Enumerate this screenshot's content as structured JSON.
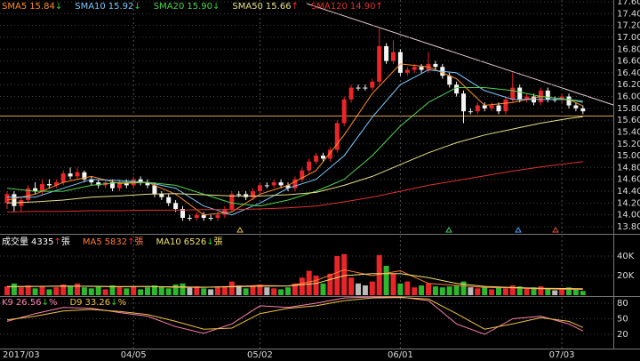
{
  "chart_data": [
    {
      "type": "candlestick",
      "categories": [
        null,
        null,
        "2017/03",
        null,
        null,
        null,
        null,
        null,
        null,
        null,
        null,
        null,
        null,
        null,
        null,
        null,
        null,
        null,
        "04/05",
        null,
        null,
        null,
        null,
        null,
        null,
        null,
        null,
        null,
        null,
        null,
        null,
        null,
        null,
        null,
        null,
        null,
        "05/02",
        null,
        null,
        null,
        null,
        null,
        null,
        null,
        null,
        null,
        null,
        null,
        null,
        null,
        null,
        null,
        null,
        null,
        null,
        null,
        "06/01",
        null,
        null,
        null,
        null,
        null,
        null,
        null,
        null,
        null,
        null,
        null,
        null,
        null,
        null,
        null,
        null,
        null,
        null,
        null,
        null,
        null,
        null,
        "07/03",
        null,
        null,
        null
      ],
      "open": [
        14.2,
        14.35,
        14.15,
        14.25,
        14.45,
        14.4,
        14.52,
        14.5,
        14.55,
        14.7,
        14.65,
        14.72,
        14.6,
        14.55,
        14.5,
        14.55,
        14.45,
        14.55,
        14.5,
        14.6,
        14.55,
        14.5,
        14.35,
        14.3,
        14.2,
        14.1,
        13.95,
        13.95,
        14.0,
        13.95,
        13.95,
        14.0,
        14.1,
        14.35,
        14.35,
        14.3,
        14.4,
        14.5,
        14.5,
        14.55,
        14.5,
        14.45,
        14.6,
        14.75,
        14.9,
        15.0,
        14.95,
        15.1,
        15.55,
        15.95,
        16.15,
        16.15,
        16.15,
        16.25,
        16.85,
        16.6,
        16.75,
        16.4,
        16.45,
        16.5,
        16.45,
        16.55,
        16.5,
        16.35,
        16.2,
        16.05,
        15.75,
        15.75,
        15.85,
        15.8,
        15.85,
        15.75,
        15.95,
        16.15,
        15.95,
        16.0,
        15.9,
        16.1,
        15.95,
        15.95,
        16.0,
        15.85,
        15.8
      ],
      "high": [
        14.4,
        14.4,
        14.3,
        14.5,
        14.55,
        14.6,
        14.6,
        14.6,
        14.75,
        14.8,
        14.8,
        14.75,
        14.65,
        14.6,
        14.6,
        14.6,
        14.6,
        14.6,
        14.65,
        14.65,
        14.6,
        14.55,
        14.4,
        14.35,
        14.25,
        14.15,
        14.0,
        14.05,
        14.05,
        14.0,
        14.05,
        14.15,
        14.4,
        14.4,
        14.4,
        14.45,
        14.55,
        14.55,
        14.6,
        14.6,
        14.55,
        14.65,
        14.8,
        14.95,
        15.05,
        15.05,
        15.15,
        15.6,
        16.0,
        16.2,
        16.2,
        16.2,
        16.3,
        17.15,
        16.9,
        16.95,
        16.8,
        16.5,
        16.55,
        16.55,
        16.75,
        16.6,
        16.55,
        16.4,
        16.25,
        16.1,
        15.8,
        15.9,
        15.9,
        15.9,
        15.9,
        16.0,
        16.4,
        16.2,
        16.05,
        16.05,
        16.15,
        16.15,
        16.0,
        16.05,
        16.05,
        15.9,
        15.85
      ],
      "low": [
        14.1,
        14.05,
        14.05,
        14.2,
        14.35,
        14.35,
        14.45,
        14.45,
        14.5,
        14.6,
        14.6,
        14.55,
        14.5,
        14.45,
        14.45,
        14.4,
        14.4,
        14.45,
        14.45,
        14.5,
        14.45,
        14.3,
        14.25,
        14.15,
        14.05,
        13.9,
        13.9,
        13.9,
        13.9,
        13.9,
        13.9,
        13.95,
        14.05,
        14.3,
        14.25,
        14.25,
        14.35,
        14.45,
        14.45,
        14.45,
        14.4,
        14.4,
        14.55,
        14.7,
        14.85,
        14.9,
        14.9,
        15.05,
        15.5,
        15.9,
        16.1,
        16.1,
        16.1,
        16.2,
        16.55,
        16.55,
        16.35,
        16.35,
        16.4,
        16.4,
        16.4,
        16.45,
        16.3,
        16.15,
        16.0,
        15.55,
        15.7,
        15.7,
        15.75,
        15.75,
        15.7,
        15.7,
        15.9,
        15.9,
        15.9,
        15.85,
        15.85,
        15.9,
        15.9,
        15.9,
        15.8,
        15.75,
        15.7
      ],
      "close": [
        14.35,
        14.15,
        14.25,
        14.45,
        14.4,
        14.52,
        14.5,
        14.55,
        14.7,
        14.65,
        14.72,
        14.6,
        14.55,
        14.5,
        14.55,
        14.45,
        14.55,
        14.5,
        14.6,
        14.55,
        14.5,
        14.35,
        14.3,
        14.2,
        14.1,
        13.95,
        13.95,
        14.0,
        13.95,
        13.95,
        14.0,
        14.1,
        14.35,
        14.35,
        14.3,
        14.4,
        14.5,
        14.5,
        14.55,
        14.5,
        14.45,
        14.6,
        14.75,
        14.9,
        15.0,
        14.95,
        15.1,
        15.55,
        15.95,
        16.15,
        16.15,
        16.15,
        16.25,
        16.85,
        16.6,
        16.75,
        16.4,
        16.45,
        16.5,
        16.45,
        16.55,
        16.5,
        16.35,
        16.2,
        16.05,
        15.75,
        15.75,
        15.85,
        15.8,
        15.85,
        15.75,
        15.95,
        16.15,
        15.95,
        16.0,
        15.9,
        16.1,
        15.95,
        15.95,
        16.0,
        15.85,
        15.8,
        15.75
      ],
      "up_color": "#e8262a",
      "down_color": "#f4f4f4",
      "ylim": [
        13.8,
        17.6
      ],
      "yticks": [
        {
          "value": 13.8,
          "label": "13.80"
        },
        {
          "value": 14,
          "label": "14.00"
        },
        {
          "value": 14.2,
          "label": "14.20"
        },
        {
          "value": 14.4,
          "label": "14.40"
        },
        {
          "value": 14.6,
          "label": "14.60"
        },
        {
          "value": 14.8,
          "label": "14.80"
        },
        {
          "value": 15,
          "label": "15.00"
        },
        {
          "value": 15.2,
          "label": "15.20"
        },
        {
          "value": 15.4,
          "label": "15.40"
        },
        {
          "value": 15.6,
          "label": "15.60"
        },
        {
          "value": 15.8,
          "label": "15.80"
        },
        {
          "value": 16,
          "label": "16.00"
        },
        {
          "value": 16.2,
          "label": "16.20"
        },
        {
          "value": 16.4,
          "label": "16.40"
        },
        {
          "value": 16.6,
          "label": "16.60"
        },
        {
          "value": 16.8,
          "label": "16.80"
        },
        {
          "value": 17,
          "label": "17.00"
        },
        {
          "value": 17.2,
          "label": "17.20"
        },
        {
          "value": 17.4,
          "label": "17.40"
        },
        {
          "value": 17.6,
          "label": "17.60"
        }
      ],
      "series": [
        {
          "name": "SMA5",
          "last_label": "15.84",
          "trend": "↓",
          "trend_color": "#33cc33",
          "color": "#ff8c2a",
          "x": [
            0,
            4,
            8,
            12,
            16,
            20,
            24,
            28,
            32,
            36,
            40,
            44,
            48,
            52,
            56,
            60,
            64,
            68,
            72,
            76,
            80,
            82
          ],
          "values": [
            14.25,
            14.35,
            14.55,
            14.65,
            14.53,
            14.55,
            14.35,
            14.0,
            14.05,
            14.35,
            14.5,
            14.75,
            15.35,
            16.05,
            16.55,
            16.5,
            16.3,
            15.85,
            15.9,
            16.0,
            15.95,
            15.84
          ]
        },
        {
          "name": "SMA10",
          "last_label": "15.92",
          "trend": "↓",
          "trend_color": "#33cc33",
          "color": "#7ec8ff",
          "x": [
            0,
            4,
            8,
            12,
            16,
            20,
            24,
            28,
            32,
            36,
            40,
            44,
            48,
            52,
            56,
            60,
            64,
            68,
            72,
            76,
            80,
            82
          ],
          "values": [
            14.3,
            14.3,
            14.45,
            14.6,
            14.58,
            14.55,
            14.45,
            14.15,
            14.0,
            14.2,
            14.45,
            14.6,
            15.0,
            15.65,
            16.2,
            16.45,
            16.4,
            16.1,
            15.95,
            15.95,
            15.95,
            15.92
          ]
        },
        {
          "name": "SMA20",
          "last_label": "15.90",
          "trend": "↓",
          "trend_color": "#33cc33",
          "color": "#4fd34f",
          "x": [
            0,
            4,
            8,
            12,
            16,
            20,
            24,
            28,
            32,
            36,
            40,
            44,
            48,
            52,
            56,
            60,
            64,
            68,
            72,
            76,
            80,
            82
          ],
          "values": [
            14.45,
            14.4,
            14.4,
            14.5,
            14.55,
            14.55,
            14.5,
            14.35,
            14.2,
            14.15,
            14.25,
            14.4,
            14.6,
            15.0,
            15.5,
            15.9,
            16.15,
            16.15,
            16.1,
            16.0,
            15.95,
            15.9
          ]
        },
        {
          "name": "SMA50",
          "last_label": "15.66",
          "trend": "↑",
          "trend_color": "#ff3030",
          "color": "#e8e08a",
          "x": [
            0,
            4,
            8,
            12,
            16,
            20,
            24,
            28,
            32,
            36,
            40,
            44,
            48,
            52,
            56,
            60,
            64,
            68,
            72,
            76,
            80,
            82
          ],
          "values": [
            14.2,
            14.22,
            14.25,
            14.3,
            14.32,
            14.35,
            14.36,
            14.34,
            14.32,
            14.32,
            14.34,
            14.38,
            14.5,
            14.65,
            14.85,
            15.05,
            15.22,
            15.35,
            15.45,
            15.55,
            15.63,
            15.66
          ]
        },
        {
          "name": "SMA120",
          "last_label": "14.90",
          "trend": "↑",
          "trend_color": "#ff3030",
          "color": "#e03030",
          "x": [
            0,
            4,
            8,
            12,
            16,
            20,
            24,
            28,
            32,
            36,
            40,
            44,
            48,
            52,
            56,
            60,
            64,
            68,
            72,
            76,
            80,
            82
          ],
          "values": [
            14.05,
            14.06,
            14.06,
            14.07,
            14.07,
            14.08,
            14.08,
            14.09,
            14.09,
            14.1,
            14.12,
            14.15,
            14.22,
            14.3,
            14.4,
            14.5,
            14.58,
            14.66,
            14.74,
            14.81,
            14.87,
            14.9
          ]
        }
      ]
    },
    {
      "type": "bar",
      "name": "成交量",
      "last_label": "4335",
      "trend": "↑",
      "trend_color": "#ff3030",
      "unit": "張",
      "up_color": "#e8262a",
      "down_color": "#2db82d",
      "flat_color": "#bbbbbb",
      "values": [
        9000,
        12000,
        8000,
        10000,
        7000,
        9000,
        6000,
        8000,
        11000,
        9000,
        12000,
        8000,
        7000,
        9000,
        6000,
        10000,
        8000,
        7000,
        9000,
        6000,
        8000,
        10000,
        9000,
        7000,
        11000,
        12000,
        8000,
        9000,
        7000,
        6000,
        8000,
        9000,
        14000,
        10000,
        7000,
        9000,
        11000,
        8000,
        7000,
        6000,
        8000,
        12000,
        18000,
        25000,
        20000,
        12000,
        22000,
        40000,
        42000,
        18000,
        12000,
        10000,
        14000,
        41000,
        30000,
        22000,
        12000,
        14000,
        8000,
        10000,
        12000,
        9000,
        8000,
        9000,
        10000,
        14000,
        8000,
        7000,
        9000,
        6000,
        8000,
        7000,
        10000,
        9000,
        7000,
        8000,
        9000,
        6000,
        5000,
        7000,
        8000,
        6000,
        4335
      ],
      "ylim": [
        0,
        60000
      ],
      "yticks": [
        {
          "value": 20000,
          "label": "20K"
        },
        {
          "value": 40000,
          "label": "40K"
        }
      ],
      "series": [
        {
          "name": "MA5",
          "last_label": "5832",
          "trend": "↑",
          "trend_color": "#ff3030",
          "unit": "張",
          "color": "#ff7a3a",
          "x": [
            0,
            4,
            8,
            12,
            16,
            20,
            24,
            28,
            32,
            36,
            40,
            44,
            48,
            52,
            56,
            60,
            64,
            68,
            72,
            76,
            80,
            82
          ],
          "values": [
            8500,
            9000,
            9500,
            9000,
            8500,
            9000,
            8000,
            8000,
            9000,
            10000,
            9500,
            15000,
            26000,
            20000,
            25000,
            12000,
            10000,
            8000,
            7500,
            6500,
            6000,
            5832
          ]
        },
        {
          "name": "MA10",
          "last_label": "6526",
          "trend": "↓",
          "trend_color": "#33cc33",
          "unit": "張",
          "color": "#f0e070",
          "x": [
            0,
            4,
            8,
            12,
            16,
            20,
            24,
            28,
            32,
            36,
            40,
            44,
            48,
            52,
            56,
            60,
            64,
            68,
            72,
            76,
            80,
            82
          ],
          "values": [
            8800,
            9000,
            9200,
            9200,
            8800,
            8900,
            8500,
            8200,
            8600,
            9200,
            9500,
            12000,
            20000,
            22000,
            22000,
            18000,
            12000,
            9000,
            7800,
            7000,
            6700,
            6526
          ]
        }
      ]
    },
    {
      "type": "line",
      "ylim": [
        0,
        100
      ],
      "yticks": [
        20,
        50,
        80
      ],
      "series": [
        {
          "name": "K9",
          "last_label": "26.56",
          "trend": "↓",
          "trend_color": "#33cc33",
          "unit": "%",
          "color": "#ff80b0",
          "x": [
            0,
            4,
            8,
            12,
            16,
            20,
            24,
            28,
            32,
            36,
            40,
            44,
            48,
            52,
            56,
            60,
            64,
            68,
            72,
            76,
            80,
            82
          ],
          "values": [
            45,
            60,
            72,
            70,
            62,
            55,
            35,
            22,
            40,
            75,
            72,
            80,
            90,
            92,
            92,
            85,
            40,
            20,
            50,
            55,
            40,
            26.56
          ]
        },
        {
          "name": "D9",
          "last_label": "33.26",
          "trend": "↓",
          "trend_color": "#33cc33",
          "unit": "%",
          "color": "#f0c040",
          "x": [
            0,
            4,
            8,
            12,
            16,
            20,
            24,
            28,
            32,
            36,
            40,
            44,
            48,
            52,
            56,
            60,
            64,
            68,
            72,
            76,
            80,
            82
          ],
          "values": [
            48,
            55,
            65,
            68,
            64,
            58,
            45,
            30,
            32,
            60,
            70,
            75,
            85,
            90,
            91,
            88,
            60,
            30,
            40,
            52,
            45,
            33.26
          ]
        }
      ]
    }
  ]
}
